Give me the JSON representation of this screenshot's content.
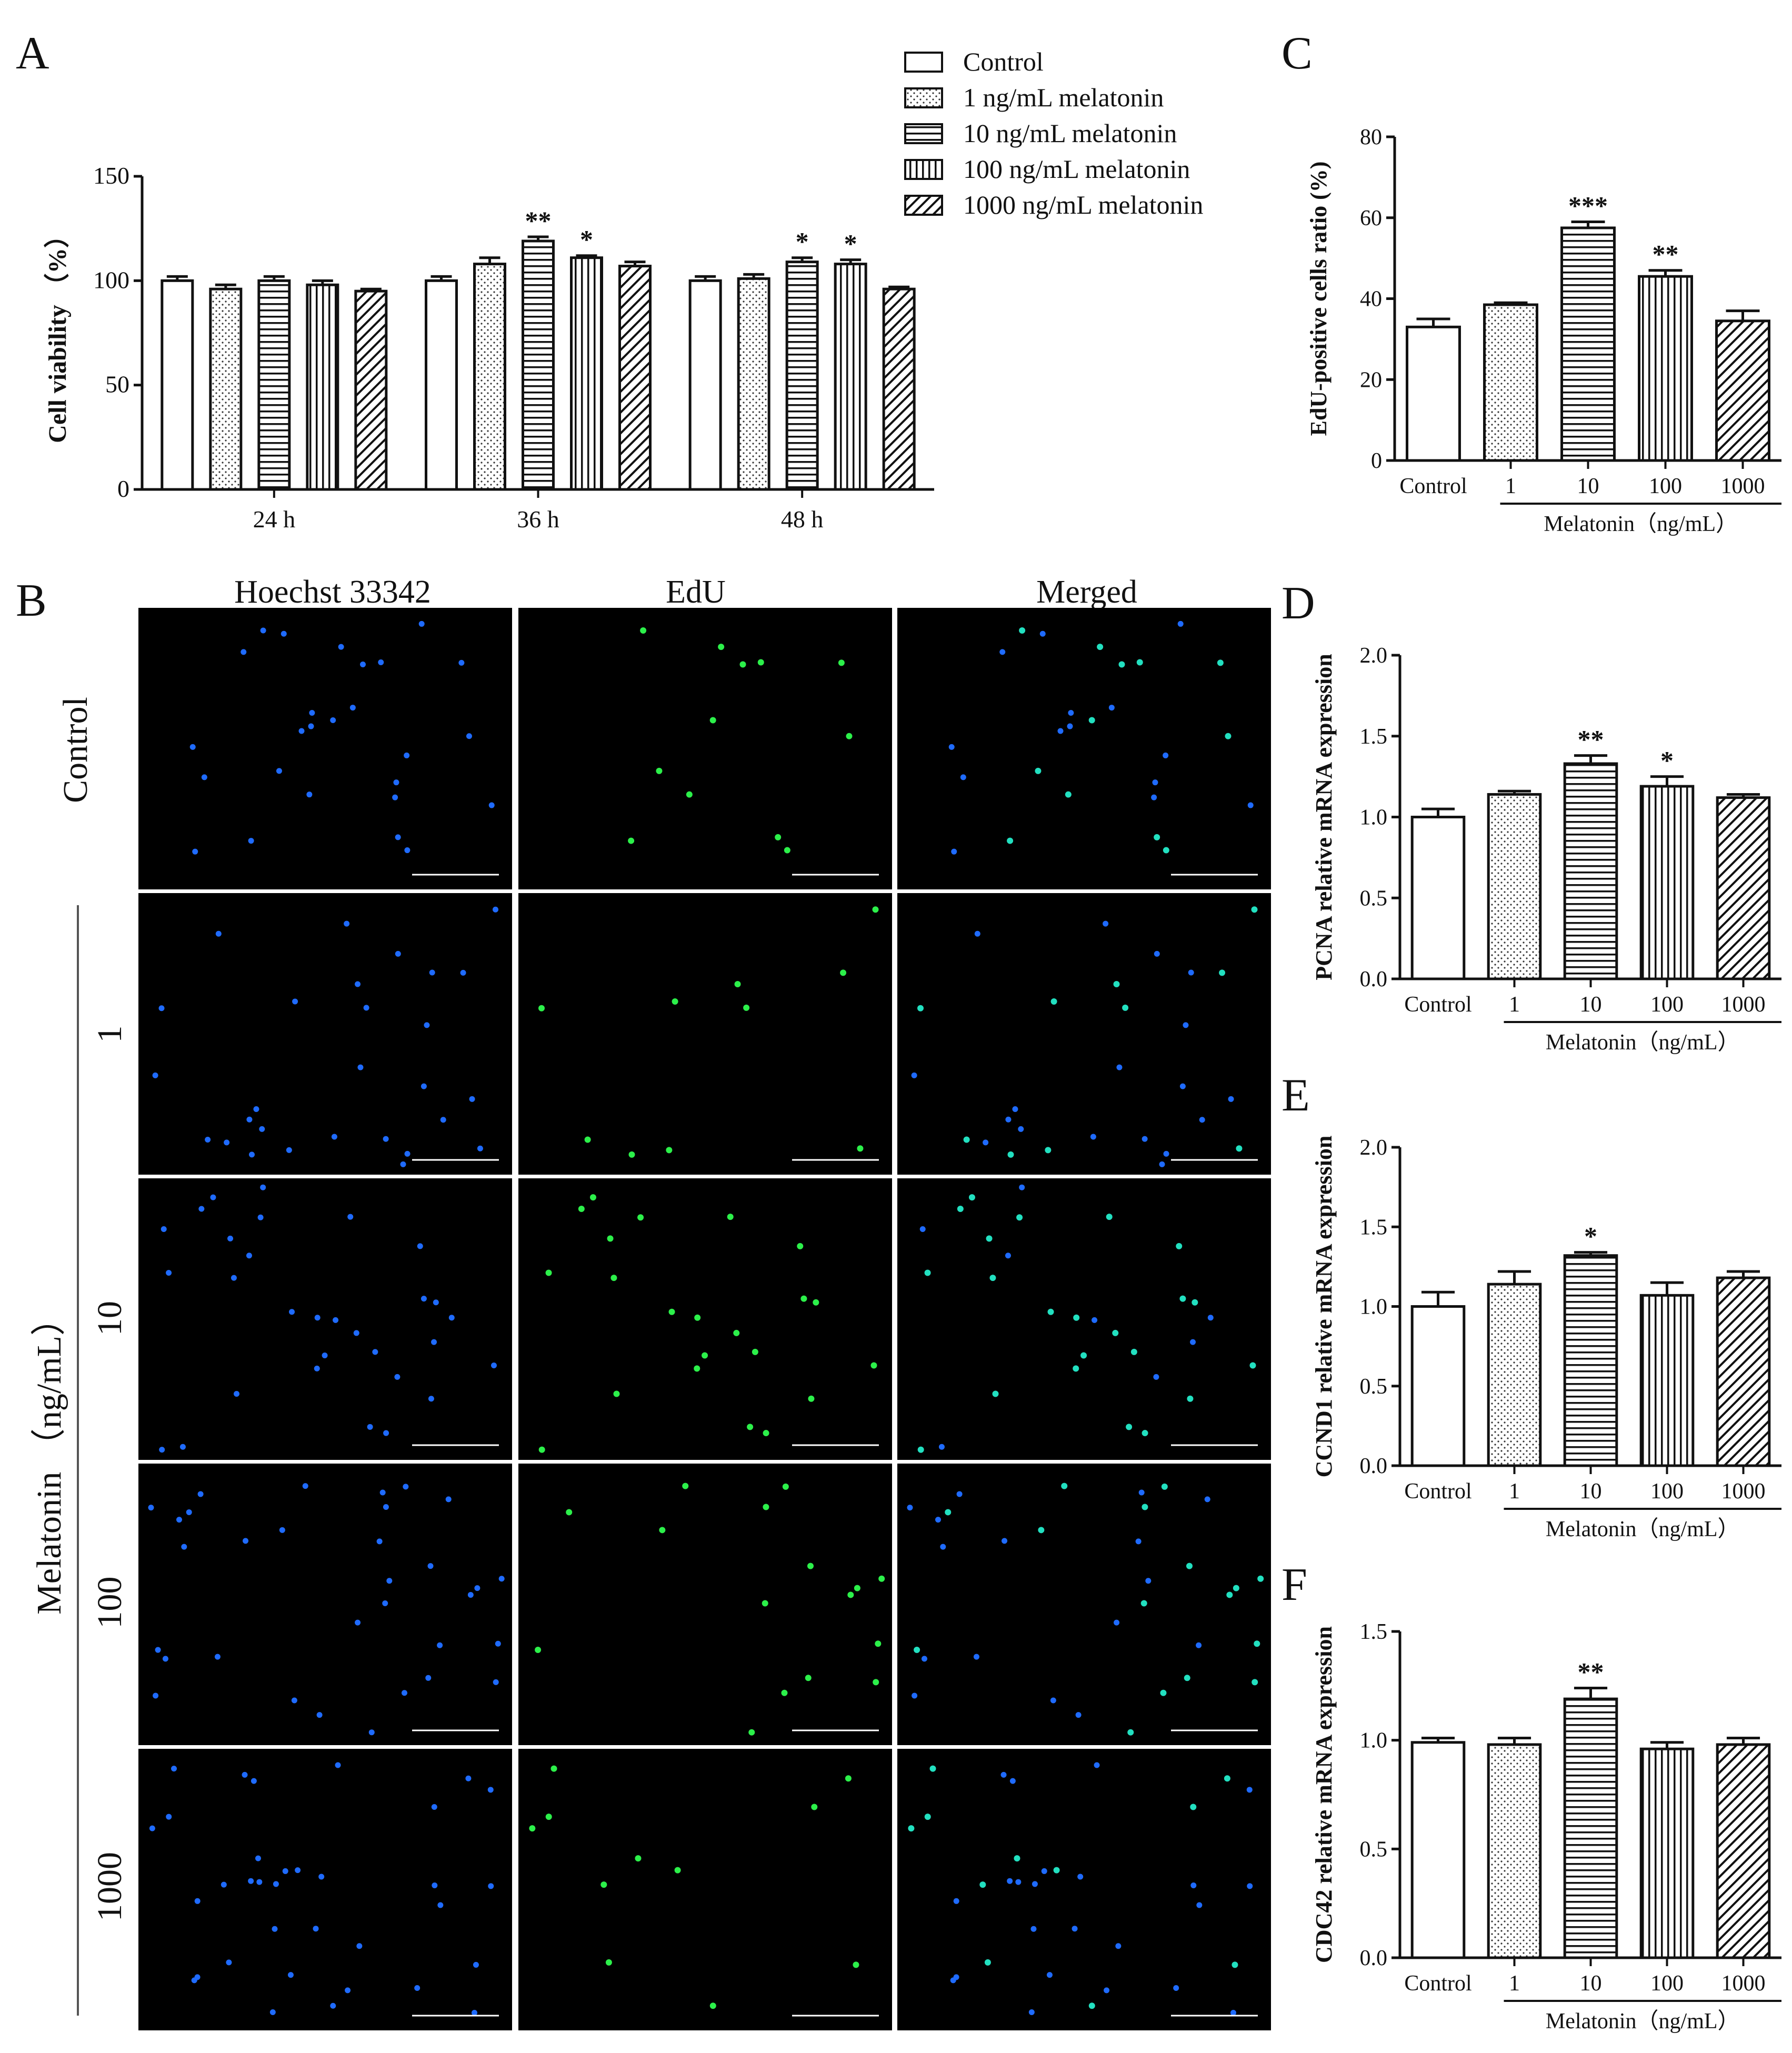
{
  "panel_labels": [
    "A",
    "B",
    "C",
    "D",
    "E",
    "F"
  ],
  "legend": [
    {
      "label": "Control",
      "pattern": "blank"
    },
    {
      "label": "1 ng/mL melatonin",
      "pattern": "dots"
    },
    {
      "label": "10 ng/mL melatonin",
      "pattern": "hlines"
    },
    {
      "label": "100 ng/mL melatonin",
      "pattern": "vlines"
    },
    {
      "label": "1000 ng/mL melatonin",
      "pattern": "diag"
    }
  ],
  "microscopy": {
    "columns": [
      "Hoechst 33342",
      "EdU",
      "Merged"
    ],
    "rows": [
      "Control",
      "1",
      "10",
      "100",
      "1000"
    ],
    "row_group_label": "Melatonin （ng/mL）"
  },
  "colors": {
    "hoechst": "#1f6bff",
    "edu": "#2cf04a",
    "merged": "#22e0c0",
    "ink": "#111111"
  },
  "chart_data": [
    {
      "panel": "A",
      "type": "bar",
      "ylabel": "Cell viability （%）",
      "ylim": [
        0,
        150
      ],
      "yticks": [
        0,
        50,
        100,
        150
      ],
      "categories": [
        "24 h",
        "36 h",
        "48 h"
      ],
      "series": [
        {
          "name": "Control",
          "values": [
            100,
            100,
            100
          ],
          "err": [
            2,
            2,
            2
          ],
          "sig": [
            "",
            "",
            ""
          ]
        },
        {
          "name": "1 ng/mL melatonin",
          "values": [
            96,
            108,
            101
          ],
          "err": [
            2,
            3,
            2
          ],
          "sig": [
            "",
            "",
            ""
          ]
        },
        {
          "name": "10 ng/mL melatonin",
          "values": [
            100,
            119,
            109
          ],
          "err": [
            2,
            2,
            2
          ],
          "sig": [
            "",
            "**",
            "*"
          ]
        },
        {
          "name": "100 ng/mL melatonin",
          "values": [
            98,
            111,
            108
          ],
          "err": [
            2,
            1,
            2
          ],
          "sig": [
            "",
            "*",
            "*"
          ]
        },
        {
          "name": "1000 ng/mL melatonin",
          "values": [
            95,
            107,
            96
          ],
          "err": [
            1,
            2,
            1
          ],
          "sig": [
            "",
            "",
            ""
          ]
        }
      ]
    },
    {
      "panel": "C",
      "type": "bar",
      "ylabel": "EdU-positive cells ratio (%)",
      "ylim": [
        0,
        80
      ],
      "yticks": [
        0,
        20,
        40,
        60,
        80
      ],
      "categories": [
        "Control",
        "1",
        "10",
        "100",
        "1000"
      ],
      "values": [
        33,
        38.5,
        57.5,
        45.5,
        34.5
      ],
      "err": [
        2,
        0.5,
        1.5,
        1.5,
        2.5
      ],
      "sig": [
        "",
        "",
        "***",
        "**",
        ""
      ],
      "xgroup_label": "Melatonin（ng/mL）"
    },
    {
      "panel": "D",
      "type": "bar",
      "ylabel": "PCNA relative mRNA expression",
      "ylim": [
        0,
        2.0
      ],
      "yticks": [
        0.0,
        0.5,
        1.0,
        1.5,
        2.0
      ],
      "categories": [
        "Control",
        "1",
        "10",
        "100",
        "1000"
      ],
      "values": [
        1.0,
        1.14,
        1.33,
        1.19,
        1.12
      ],
      "err": [
        0.05,
        0.02,
        0.05,
        0.06,
        0.02
      ],
      "sig": [
        "",
        "",
        "**",
        "*",
        ""
      ],
      "xgroup_label": "Melatonin（ng/mL）"
    },
    {
      "panel": "E",
      "type": "bar",
      "ylabel": "CCND1 relative mRNA expression",
      "ylim": [
        0,
        2.0
      ],
      "yticks": [
        0.0,
        0.5,
        1.0,
        1.5,
        2.0
      ],
      "categories": [
        "Control",
        "1",
        "10",
        "100",
        "1000"
      ],
      "values": [
        1.0,
        1.14,
        1.32,
        1.07,
        1.18
      ],
      "err": [
        0.09,
        0.08,
        0.02,
        0.08,
        0.04
      ],
      "sig": [
        "",
        "",
        "*",
        "",
        ""
      ],
      "xgroup_label": "Melatonin（ng/mL）"
    },
    {
      "panel": "F",
      "type": "bar",
      "ylabel": "CDC42 relative mRNA expression",
      "ylim": [
        0,
        1.5
      ],
      "yticks": [
        0.0,
        0.5,
        1.0,
        1.5
      ],
      "categories": [
        "Control",
        "1",
        "10",
        "100",
        "1000"
      ],
      "values": [
        0.99,
        0.98,
        1.19,
        0.96,
        0.98
      ],
      "err": [
        0.02,
        0.03,
        0.05,
        0.03,
        0.03
      ],
      "sig": [
        "",
        "",
        "**",
        "",
        ""
      ],
      "xgroup_label": "Melatonin（ng/mL）"
    }
  ]
}
